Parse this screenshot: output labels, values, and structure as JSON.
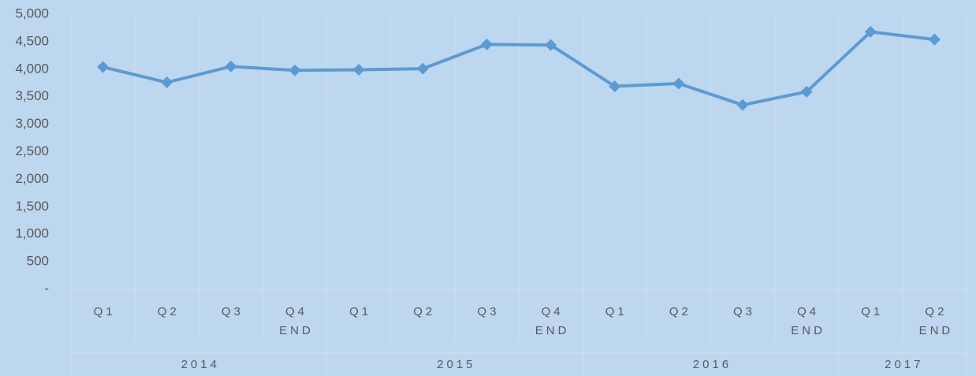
{
  "chart_data": {
    "type": "line",
    "categories": [
      [
        "Q1"
      ],
      [
        "Q2"
      ],
      [
        "Q3"
      ],
      [
        "Q4",
        "END"
      ],
      [
        "Q1"
      ],
      [
        "Q2"
      ],
      [
        "Q3"
      ],
      [
        "Q4",
        "END"
      ],
      [
        "Q1"
      ],
      [
        "Q2"
      ],
      [
        "Q3"
      ],
      [
        "Q4",
        "END"
      ],
      [
        "Q1"
      ],
      [
        "Q2",
        "END"
      ]
    ],
    "groups": [
      {
        "name": "2014",
        "count": 4
      },
      {
        "name": "2015",
        "count": 4
      },
      {
        "name": "2016",
        "count": 4
      },
      {
        "name": "2017",
        "count": 2
      }
    ],
    "series": [
      {
        "color": "#5b9bd5",
        "values": [
          4040,
          3760,
          4050,
          3980,
          3990,
          4010,
          4450,
          4440,
          3690,
          3740,
          3350,
          3590,
          4680,
          4540
        ]
      }
    ],
    "ylim": [
      0,
      5000
    ],
    "yticks": [
      {
        "value": 0,
        "label": "-"
      },
      500,
      {
        "value": 1000,
        "label": "1,000"
      },
      {
        "value": 1500,
        "label": "1,500"
      },
      {
        "value": 2000,
        "label": "2,000"
      },
      {
        "value": 2500,
        "label": "2,500"
      },
      {
        "value": 3000,
        "label": "3,000"
      },
      {
        "value": 3500,
        "label": "3,500"
      },
      {
        "value": 4000,
        "label": "4,000"
      },
      {
        "value": 4500,
        "label": "4,500"
      },
      {
        "value": 5000,
        "label": "5,000"
      }
    ]
  }
}
